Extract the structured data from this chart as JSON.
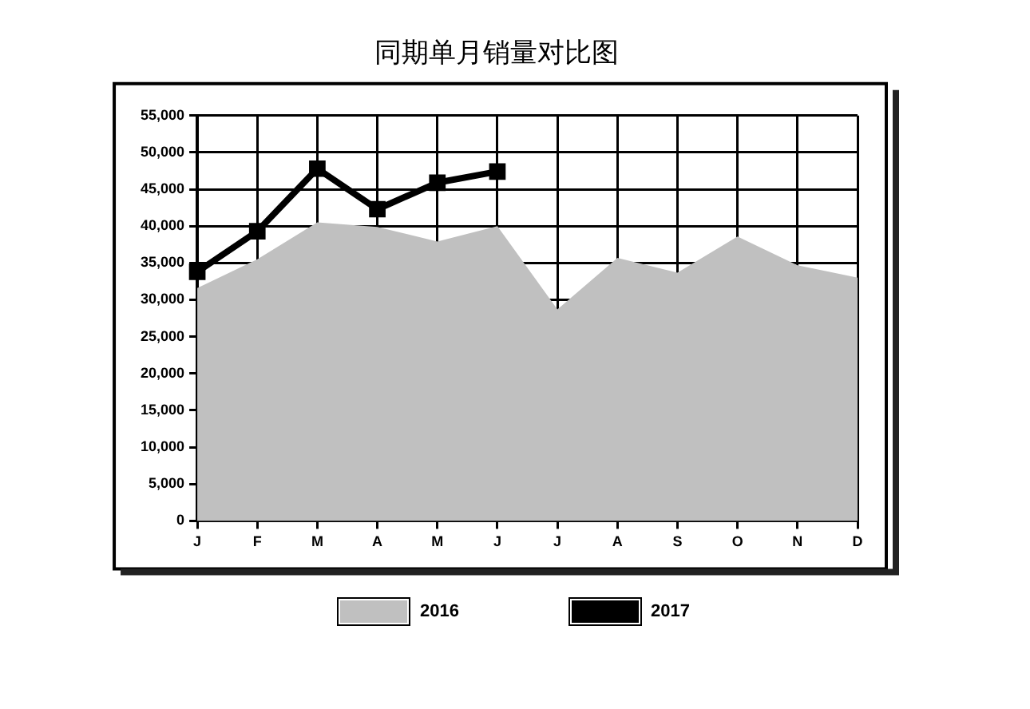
{
  "chart_data": {
    "type": "area",
    "title": "同期单月销量对比图",
    "categories": [
      "J",
      "F",
      "M",
      "A",
      "M",
      "J",
      "J",
      "A",
      "S",
      "O",
      "N",
      "D"
    ],
    "series": [
      {
        "name": "2016",
        "type": "area",
        "color": "#c0c0c0",
        "marker": "none",
        "values": [
          31600,
          35500,
          40500,
          39900,
          37900,
          40000,
          28700,
          35700,
          33700,
          38600,
          34700,
          33000
        ]
      },
      {
        "name": "2017",
        "type": "line",
        "color": "#000000",
        "marker": "square",
        "values": [
          33800,
          39300,
          47800,
          42300,
          45900,
          47400,
          null,
          null,
          null,
          null,
          null,
          null
        ]
      }
    ],
    "ylim": [
      0,
      55000
    ],
    "yticks": [
      {
        "value": 0,
        "label": "0"
      },
      {
        "value": 5000,
        "label": "5,000"
      },
      {
        "value": 10000,
        "label": "10,000"
      },
      {
        "value": 15000,
        "label": "15,000"
      },
      {
        "value": 20000,
        "label": "20,000"
      },
      {
        "value": 25000,
        "label": "25,000"
      },
      {
        "value": 30000,
        "label": "30,000"
      },
      {
        "value": 35000,
        "label": "35,000"
      },
      {
        "value": 40000,
        "label": "40,000"
      },
      {
        "value": 45000,
        "label": "45,000"
      },
      {
        "value": 50000,
        "label": "50,000"
      },
      {
        "value": 55000,
        "label": "55,000"
      }
    ],
    "grid": true,
    "legend": "bottom",
    "line_style": "solid"
  }
}
